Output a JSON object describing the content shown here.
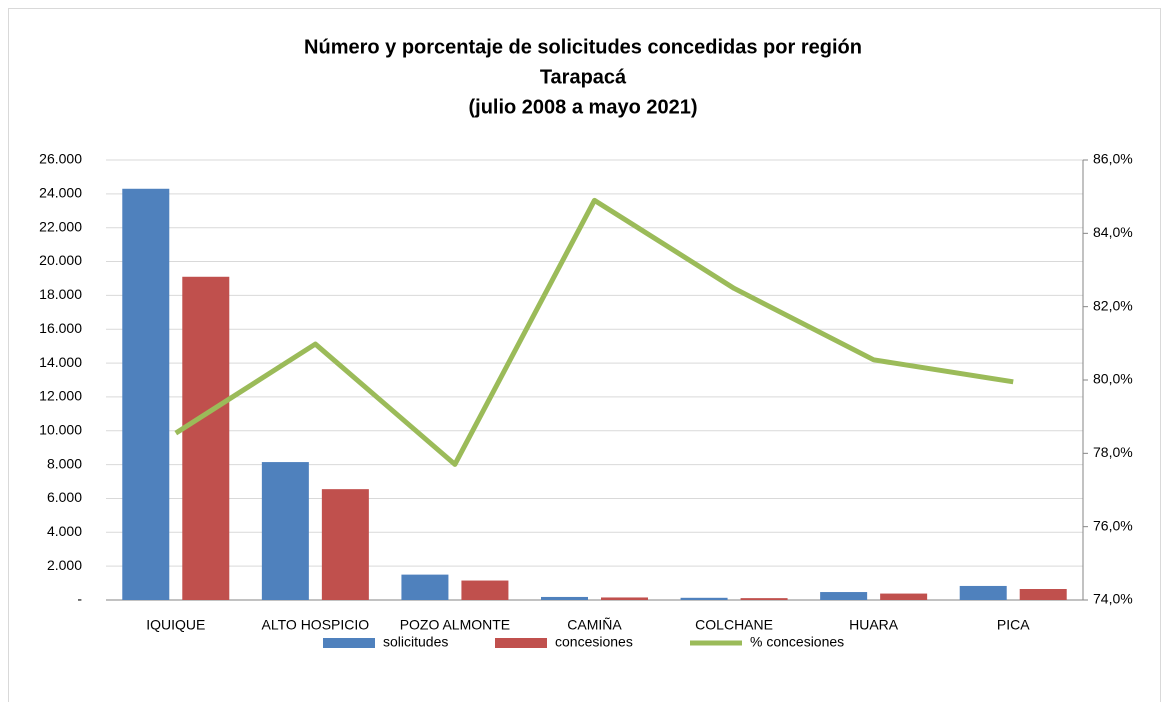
{
  "chart_data": {
    "type": "bar_line",
    "title": [
      "Número y porcentaje de solicitudes concedidas por región",
      "Tarapacá",
      "(julio 2008 a mayo 2021)"
    ],
    "categories": [
      "IQUIQUE",
      "ALTO HOSPICIO",
      "POZO ALMONTE",
      "CAMIÑA",
      "COLCHANE",
      "HUARA",
      "PICA"
    ],
    "series": [
      {
        "name": "solicitudes",
        "color": "#4f81bd",
        "type": "bar",
        "values": [
          24300,
          8150,
          1500,
          180,
          130,
          470,
          830
        ]
      },
      {
        "name": "concesiones",
        "color": "#c0504d",
        "type": "bar",
        "values": [
          19100,
          6550,
          1150,
          150,
          110,
          380,
          650
        ]
      },
      {
        "name": "% concesiones",
        "color": "#9bbb59",
        "type": "line",
        "axis": "y2",
        "values": [
          78.55,
          80.98,
          77.7,
          84.9,
          82.5,
          80.55,
          79.95
        ]
      }
    ],
    "ylim": [
      0,
      26000
    ],
    "yticks": [
      {
        "value": 0,
        "label": "-"
      },
      {
        "value": 2000,
        "label": "2.000"
      },
      {
        "value": 4000,
        "label": "4.000"
      },
      {
        "value": 6000,
        "label": "6.000"
      },
      {
        "value": 8000,
        "label": "8.000"
      },
      {
        "value": 10000,
        "label": "10.000"
      },
      {
        "value": 12000,
        "label": "12.000"
      },
      {
        "value": 14000,
        "label": "14.000"
      },
      {
        "value": 16000,
        "label": "16.000"
      },
      {
        "value": 18000,
        "label": "18.000"
      },
      {
        "value": 20000,
        "label": "20.000"
      },
      {
        "value": 22000,
        "label": "22.000"
      },
      {
        "value": 24000,
        "label": "24.000"
      },
      {
        "value": 26000,
        "label": "26.000"
      }
    ],
    "y2lim": [
      74,
      86
    ],
    "y2ticks": [
      {
        "value": 74,
        "label": "74,0%"
      },
      {
        "value": 76,
        "label": "76,0%"
      },
      {
        "value": 78,
        "label": "78,0%"
      },
      {
        "value": 80,
        "label": "80,0%"
      },
      {
        "value": 82,
        "label": "82,0%"
      },
      {
        "value": 84,
        "label": "84,0%"
      },
      {
        "value": 86,
        "label": "86,0%"
      }
    ],
    "grid": true,
    "legend": "bottom"
  }
}
